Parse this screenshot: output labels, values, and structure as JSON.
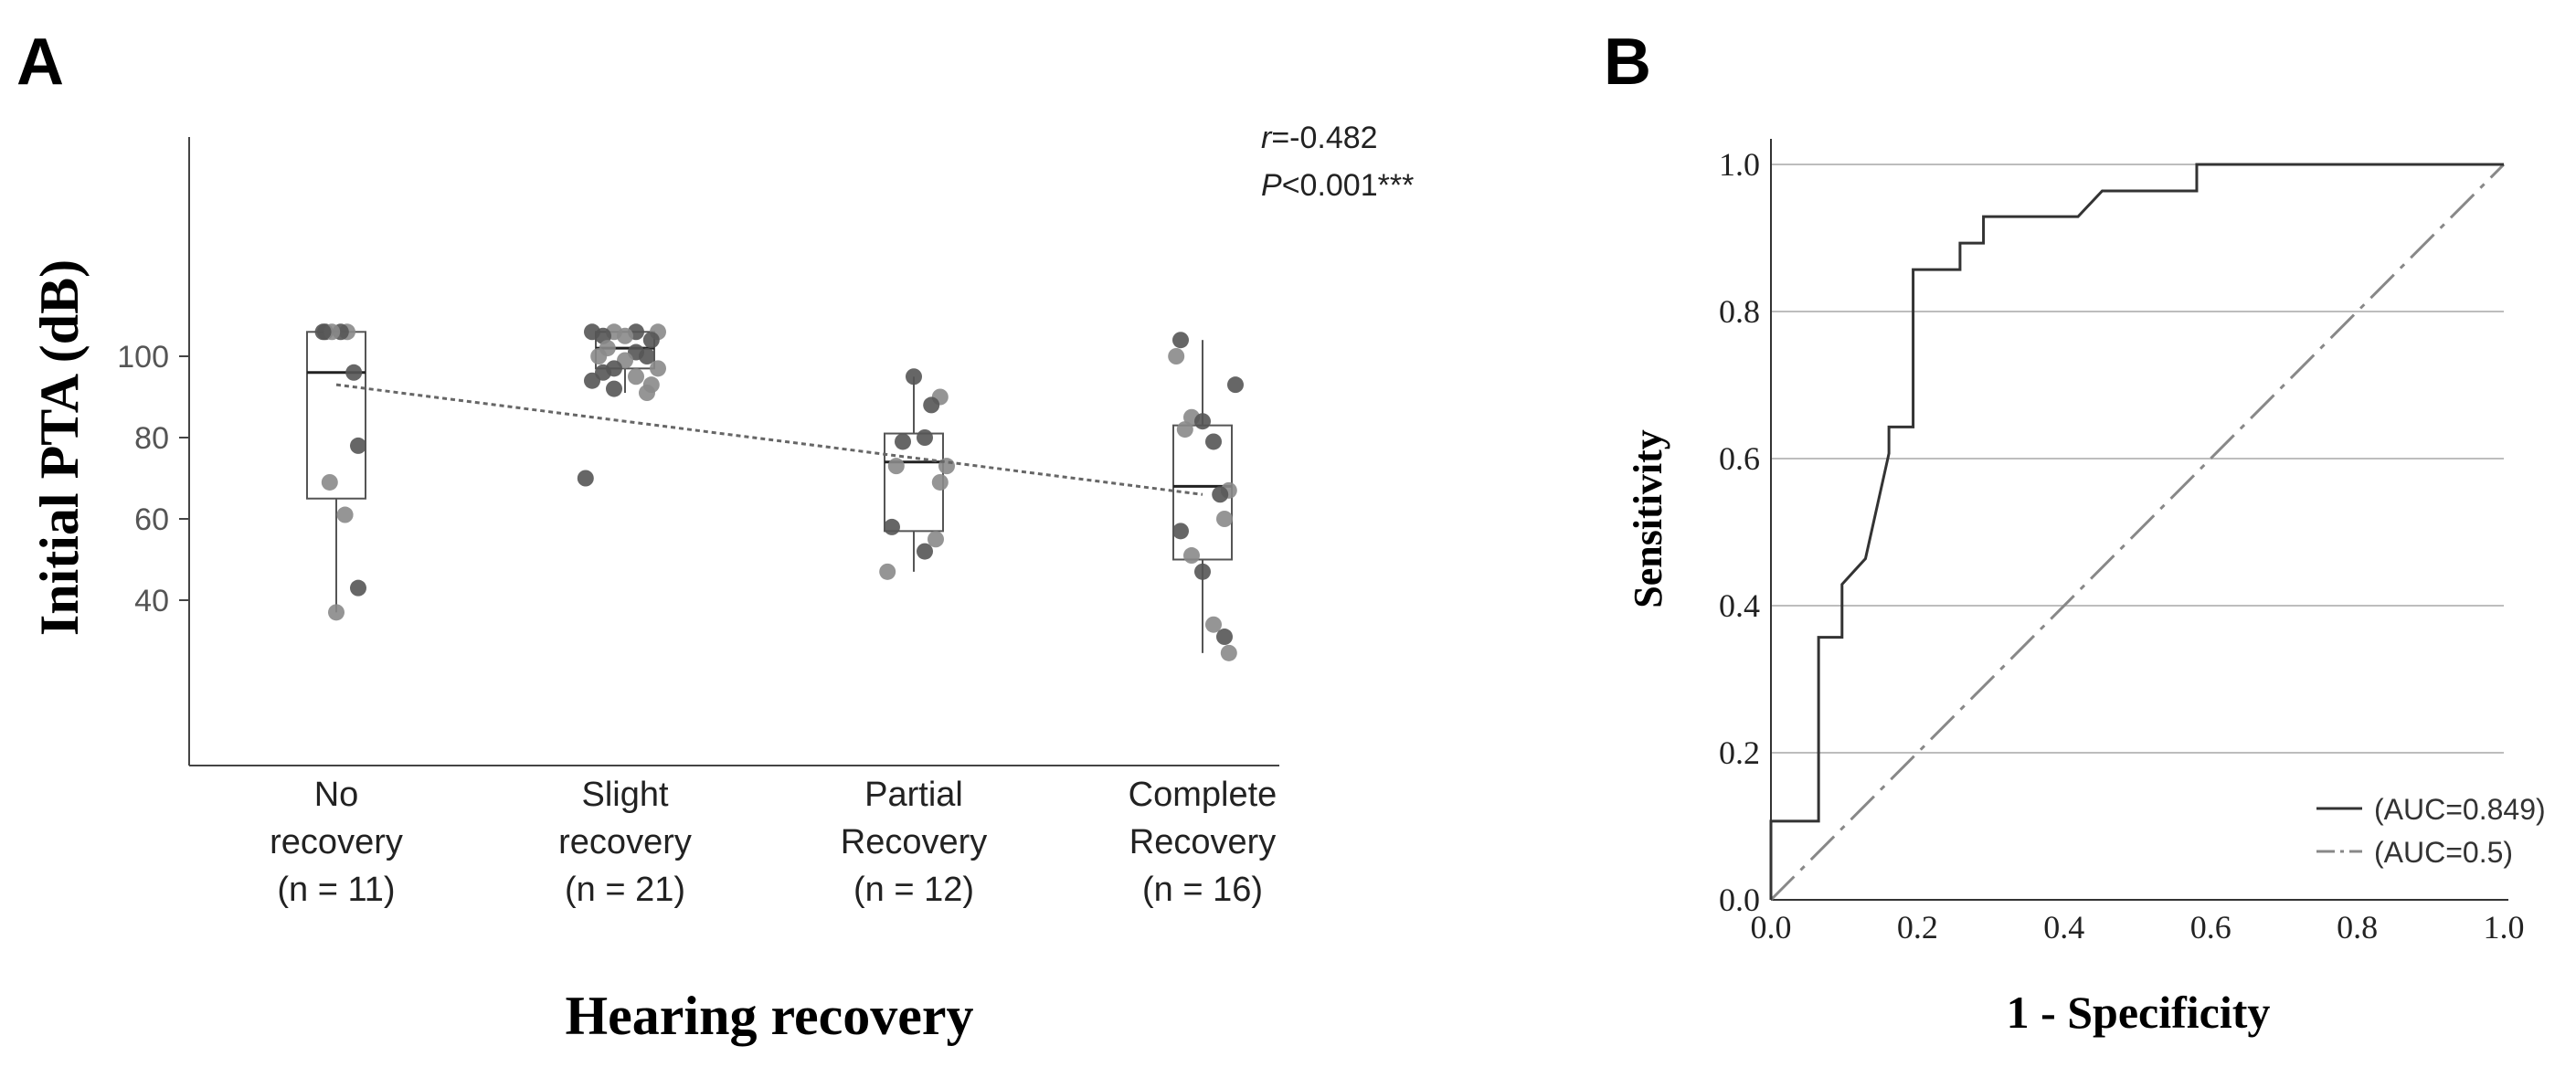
{
  "chart_data": [
    {
      "panel": "A",
      "type": "scatter",
      "ylabel": "Initial PTA (dB)",
      "xlabel": "Hearing recovery",
      "ylim": [
        20,
        110
      ],
      "yticks": [
        40,
        60,
        80,
        100
      ],
      "categories": [
        {
          "lines": [
            "No",
            "recovery",
            "(n = 11)"
          ]
        },
        {
          "lines": [
            "Slight",
            "recovery",
            "(n = 21)"
          ]
        },
        {
          "lines": [
            "Partial",
            "Recovery",
            "(n = 12)"
          ]
        },
        {
          "lines": [
            "Complete",
            "Recovery",
            "(n = 16)"
          ]
        }
      ],
      "boxes": [
        {
          "min": 37,
          "q1": 65,
          "median": 96,
          "q3": 106,
          "max": 106
        },
        {
          "min": 91,
          "q1": 97,
          "median": 102,
          "q3": 106,
          "max": 106
        },
        {
          "min": 47,
          "q1": 57,
          "median": 74,
          "q3": 81,
          "max": 95
        },
        {
          "min": 27,
          "q1": 50,
          "median": 68,
          "q3": 83,
          "max": 104
        }
      ],
      "points": [
        [
          [
            -0.05,
            106
          ],
          [
            0.05,
            106
          ],
          [
            0.02,
            106
          ],
          [
            -0.02,
            106
          ],
          [
            0.08,
            96
          ],
          [
            -0.03,
            69
          ],
          [
            0.1,
            78
          ],
          [
            0.04,
            61
          ],
          [
            0.1,
            43
          ],
          [
            0.0,
            37
          ],
          [
            -0.06,
            106
          ]
        ],
        [
          [
            -0.15,
            106
          ],
          [
            -0.05,
            106
          ],
          [
            0.05,
            106
          ],
          [
            0.15,
            106
          ],
          [
            -0.1,
            105
          ],
          [
            0.0,
            105
          ],
          [
            0.12,
            104
          ],
          [
            -0.08,
            102
          ],
          [
            0.05,
            101
          ],
          [
            -0.12,
            100
          ],
          [
            0.1,
            100
          ],
          [
            0.0,
            99
          ],
          [
            -0.05,
            97
          ],
          [
            0.15,
            97
          ],
          [
            -0.1,
            96
          ],
          [
            0.05,
            95
          ],
          [
            -0.15,
            94
          ],
          [
            0.12,
            93
          ],
          [
            -0.05,
            92
          ],
          [
            0.1,
            91
          ],
          [
            -0.18,
            70
          ]
        ],
        [
          [
            -0.1,
            58
          ],
          [
            -0.08,
            73
          ],
          [
            0.05,
            80
          ],
          [
            0.12,
            90
          ],
          [
            0.0,
            95
          ],
          [
            0.15,
            73
          ],
          [
            -0.05,
            79
          ],
          [
            0.12,
            69
          ],
          [
            0.08,
            88
          ],
          [
            -0.12,
            47
          ],
          [
            0.05,
            52
          ],
          [
            0.1,
            55
          ]
        ],
        [
          [
            -0.1,
            104
          ],
          [
            -0.12,
            100
          ],
          [
            0.15,
            93
          ],
          [
            -0.05,
            85
          ],
          [
            0.0,
            84
          ],
          [
            -0.08,
            82
          ],
          [
            0.05,
            79
          ],
          [
            0.12,
            67
          ],
          [
            0.08,
            66
          ],
          [
            0.1,
            60
          ],
          [
            -0.1,
            57
          ],
          [
            -0.05,
            51
          ],
          [
            0.0,
            47
          ],
          [
            0.05,
            34
          ],
          [
            0.1,
            31
          ],
          [
            0.12,
            27
          ]
        ]
      ],
      "trend": [
        [
          0,
          93
        ],
        [
          3,
          66
        ]
      ],
      "annotation": {
        "r_label": "r",
        "r_value": "=-0.482",
        "p_label": "P",
        "p_value": "<0.001***"
      }
    },
    {
      "panel": "B",
      "type": "line",
      "xlabel": "1 - Specificity",
      "ylabel": "Sensitivity",
      "xlim": [
        0,
        1
      ],
      "ylim": [
        0,
        1
      ],
      "xticks": [
        "0.0",
        "0.2",
        "0.4",
        "0.6",
        "0.8",
        "1.0"
      ],
      "yticks": [
        "0.0",
        "0.2",
        "0.4",
        "0.6",
        "0.8",
        "1.0"
      ],
      "series": [
        {
          "name": "(AUC=0.849)",
          "x": [
            0,
            0,
            0.065,
            0.065,
            0.097,
            0.097,
            0.129,
            0.129,
            0.161,
            0.161,
            0.194,
            0.194,
            0.258,
            0.258,
            0.29,
            0.29,
            0.323,
            0.323,
            0.419,
            0.452,
            0.484,
            0.516,
            0.548,
            0.581,
            0.581,
            1.0
          ],
          "y": [
            0,
            0.107,
            0.107,
            0.357,
            0.357,
            0.429,
            0.464,
            0.464,
            0.607,
            0.643,
            0.643,
            0.857,
            0.857,
            0.893,
            0.893,
            0.929,
            0.929,
            0.929,
            0.929,
            0.964,
            0.964,
            0.964,
            0.964,
            0.964,
            1.0,
            1.0
          ]
        },
        {
          "name": "(AUC=0.5)",
          "x": [
            0,
            1
          ],
          "y": [
            0,
            1
          ]
        }
      ],
      "grid": "horizontal",
      "legend": "bottom-right"
    }
  ],
  "labels": {
    "panel_a": "A",
    "panel_b": "B",
    "a_ylabel": "Initial PTA (dB)",
    "a_xlabel": "Hearing recovery",
    "b_xlabel": "1 - Specificity",
    "b_ylabel": "Sensitivity",
    "r_label": "r",
    "r_value": "=-0.482",
    "p_label": "P",
    "p_value": "<0.001***",
    "legend_1": "(AUC=0.849)",
    "legend_2": "(AUC=0.5)"
  }
}
